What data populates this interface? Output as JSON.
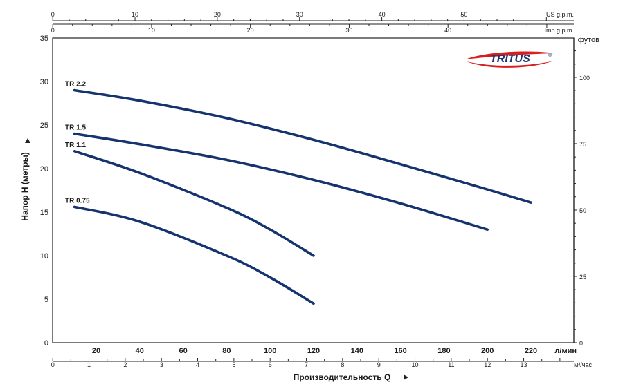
{
  "chart_data": {
    "type": "line",
    "ylabel": "Напор  H (метры)",
    "xlabel": "Производительность  Q",
    "x_unit_lpm": "л/мин",
    "x_unit_m3h": "м³/час",
    "right_unit_ft": "футов",
    "top_unit_us": "US g.p.m.",
    "top_unit_imp": "Imp g.p.m.",
    "brand": "TRITUS",
    "ylim": [
      0,
      35
    ],
    "xlim_lpm": [
      0,
      240
    ],
    "y_ticks": [
      0,
      5,
      10,
      15,
      20,
      25,
      30,
      35
    ],
    "x_ticks_lpm": [
      20,
      40,
      60,
      80,
      100,
      120,
      140,
      160,
      180,
      200,
      220
    ],
    "x_ticks_m3h": [
      0,
      1,
      2,
      3,
      4,
      5,
      6,
      7,
      8,
      9,
      10,
      11,
      12,
      13
    ],
    "top_ticks_us": [
      0,
      10,
      20,
      30,
      40,
      50
    ],
    "top_ticks_imp": [
      0,
      10,
      20,
      30,
      40
    ],
    "right_ticks_ft": [
      0,
      25,
      50,
      75,
      100
    ],
    "grid": true,
    "series": [
      {
        "name": "TR 2.2",
        "color": "#15336e",
        "x": [
          10,
          40,
          80,
          120,
          160,
          200,
          220
        ],
        "y": [
          29,
          27.8,
          25.8,
          23.3,
          20.5,
          17.6,
          16.1
        ]
      },
      {
        "name": "TR 1.5",
        "color": "#15336e",
        "x": [
          10,
          40,
          80,
          120,
          160,
          200
        ],
        "y": [
          24,
          22.8,
          21,
          18.7,
          16,
          13
        ]
      },
      {
        "name": "TR 1.1",
        "color": "#15336e",
        "x": [
          10,
          40,
          80,
          100,
          120
        ],
        "y": [
          22,
          19.5,
          15.5,
          13,
          10
        ]
      },
      {
        "name": "TR 0.75",
        "color": "#15336e",
        "x": [
          10,
          40,
          80,
          100,
          120
        ],
        "y": [
          15.6,
          13.9,
          10,
          7.5,
          4.5
        ]
      }
    ]
  }
}
